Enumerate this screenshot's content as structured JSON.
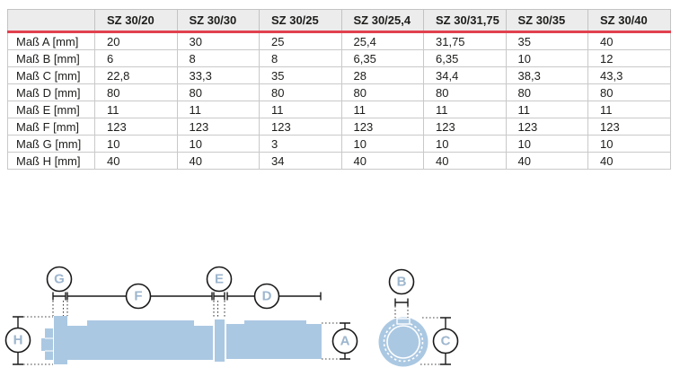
{
  "table": {
    "corner_label": "",
    "columns": [
      "SZ 30/20",
      "SZ 30/30",
      "SZ 30/25",
      "SZ 30/25,4",
      "SZ 30/31,75",
      "SZ 30/35",
      "SZ 30/40"
    ],
    "rows": [
      {
        "label": "Maß A [mm]",
        "values": [
          "20",
          "30",
          "25",
          "25,4",
          "31,75",
          "35",
          "40"
        ]
      },
      {
        "label": "Maß B [mm]",
        "values": [
          "6",
          "8",
          "8",
          "6,35",
          "6,35",
          "10",
          "12"
        ]
      },
      {
        "label": "Maß C [mm]",
        "values": [
          "22,8",
          "33,3",
          "35",
          "28",
          "34,4",
          "38,3",
          "43,3"
        ]
      },
      {
        "label": "Maß D [mm]",
        "values": [
          "80",
          "80",
          "80",
          "80",
          "80",
          "80",
          "80"
        ]
      },
      {
        "label": "Maß E [mm]",
        "values": [
          "11",
          "11",
          "11",
          "11",
          "11",
          "11",
          "11"
        ]
      },
      {
        "label": "Maß F [mm]",
        "values": [
          "123",
          "123",
          "123",
          "123",
          "123",
          "123",
          "123"
        ]
      },
      {
        "label": "Maß G [mm]",
        "values": [
          "10",
          "10",
          "3",
          "10",
          "10",
          "10",
          "10"
        ]
      },
      {
        "label": "Maß H [mm]",
        "values": [
          "40",
          "40",
          "34",
          "40",
          "40",
          "40",
          "40"
        ]
      }
    ]
  },
  "diagram": {
    "labels": {
      "A": "A",
      "B": "B",
      "C": "C",
      "D": "D",
      "E": "E",
      "F": "F",
      "G": "G",
      "H": "H"
    }
  },
  "colors": {
    "accent_red": "#e2414f",
    "header_bg": "#ececec",
    "part_blue": "#abc8e2",
    "letter_blue": "#9db6ce",
    "line_black": "#1a1a1a"
  }
}
